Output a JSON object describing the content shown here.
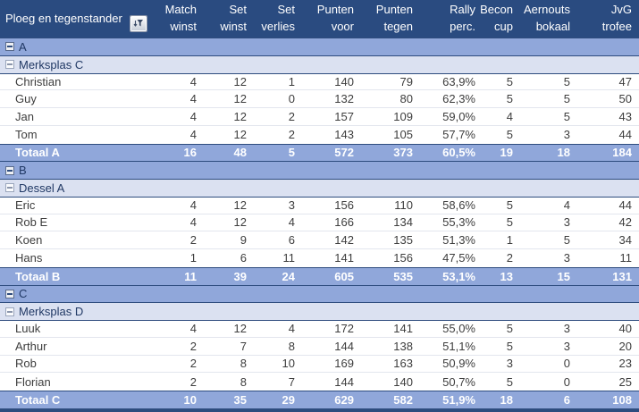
{
  "colors": {
    "header_bg": "#2a4b80",
    "band_level1_bg": "#90a7da",
    "band_level2_bg": "#dbe1f1",
    "total_bg": "#90a7da",
    "navy_border": "#2e4c7e",
    "header_text": "#ffffff",
    "band_text": "#203864",
    "data_text": "#3d3d3d"
  },
  "table": {
    "header": {
      "first_col_label": "Ploeg en tegenstander",
      "filter_icon": "sort-filter-icon",
      "columns": [
        {
          "top": "Match",
          "bottom": "winst"
        },
        {
          "top": "Set",
          "bottom": "winst"
        },
        {
          "top": "Set",
          "bottom": "verlies"
        },
        {
          "top": "Punten",
          "bottom": "voor"
        },
        {
          "top": "Punten",
          "bottom": "tegen"
        },
        {
          "top": "Rally",
          "bottom": "perc."
        },
        {
          "top": "Becon",
          "bottom": "cup"
        },
        {
          "top": "Aernouts",
          "bottom": "bokaal"
        },
        {
          "top": "JvG",
          "bottom": "trofee"
        }
      ]
    },
    "groups": [
      {
        "group_label": "A",
        "team_label": "Merksplas C",
        "players": [
          [
            "Christian",
            "4",
            "12",
            "1",
            "140",
            "79",
            "63,9%",
            "5",
            "5",
            "47"
          ],
          [
            "Guy",
            "4",
            "12",
            "0",
            "132",
            "80",
            "62,3%",
            "5",
            "5",
            "50"
          ],
          [
            "Jan",
            "4",
            "12",
            "2",
            "157",
            "109",
            "59,0%",
            "4",
            "5",
            "43"
          ],
          [
            "Tom",
            "4",
            "12",
            "2",
            "143",
            "105",
            "57,7%",
            "5",
            "3",
            "44"
          ]
        ],
        "total": [
          "Totaal A",
          "16",
          "48",
          "5",
          "572",
          "373",
          "60,5%",
          "19",
          "18",
          "184"
        ]
      },
      {
        "group_label": "B",
        "team_label": "Dessel A",
        "players": [
          [
            "Eric",
            "4",
            "12",
            "3",
            "156",
            "110",
            "58,6%",
            "5",
            "4",
            "44"
          ],
          [
            "Rob E",
            "4",
            "12",
            "4",
            "166",
            "134",
            "55,3%",
            "5",
            "3",
            "42"
          ],
          [
            "Koen",
            "2",
            "9",
            "6",
            "142",
            "135",
            "51,3%",
            "1",
            "5",
            "34"
          ],
          [
            "Hans",
            "1",
            "6",
            "11",
            "141",
            "156",
            "47,5%",
            "2",
            "3",
            "11"
          ]
        ],
        "total": [
          "Totaal B",
          "11",
          "39",
          "24",
          "605",
          "535",
          "53,1%",
          "13",
          "15",
          "131"
        ]
      },
      {
        "group_label": "C",
        "team_label": "Merksplas D",
        "players": [
          [
            "Luuk",
            "4",
            "12",
            "4",
            "172",
            "141",
            "55,0%",
            "5",
            "3",
            "40"
          ],
          [
            "Arthur",
            "2",
            "7",
            "8",
            "144",
            "138",
            "51,1%",
            "5",
            "3",
            "20"
          ],
          [
            "Rob",
            "2",
            "8",
            "10",
            "169",
            "163",
            "50,9%",
            "3",
            "0",
            "23"
          ],
          [
            "Florian",
            "2",
            "8",
            "7",
            "144",
            "140",
            "50,7%",
            "5",
            "0",
            "25"
          ]
        ],
        "total": [
          "Totaal C",
          "10",
          "35",
          "29",
          "629",
          "582",
          "51,9%",
          "18",
          "6",
          "108"
        ]
      }
    ]
  }
}
